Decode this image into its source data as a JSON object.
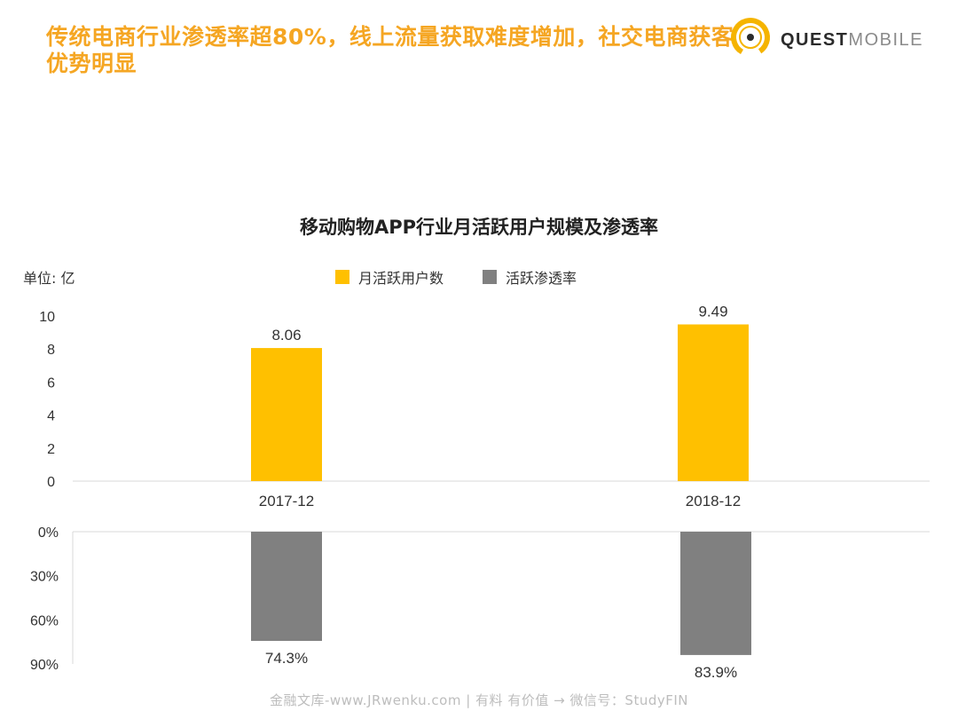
{
  "headline": "传统电商行业渗透率超80%，线上流量获取难度增加，社交电商获客优势明显",
  "brand": {
    "bold": "QUEST",
    "light": "MOBILE"
  },
  "footer": "金融文库-www.JRwenku.com | 有料 有价值 → 微信号：StudyFIN",
  "colors": {
    "accent": "#f5a623",
    "bar_primary": "#ffc000",
    "bar_secondary": "#808080"
  },
  "chart_data": {
    "type": "bar",
    "title": "移动购物APP行业月活跃用户规模及渗透率",
    "unit_label": "单位: 亿",
    "legend_position": "top-center",
    "categories": [
      "2017-12",
      "2018-12"
    ],
    "series": [
      {
        "name": "月活跃用户数",
        "values": [
          8.06,
          9.49
        ],
        "value_labels": [
          "8.06",
          "9.49"
        ],
        "color": "#ffc000",
        "axis": "top",
        "ylim": [
          0,
          10
        ],
        "ticks": [
          "0",
          "2",
          "4",
          "6",
          "8",
          "10"
        ]
      },
      {
        "name": "活跃渗透率",
        "values": [
          74.3,
          83.9
        ],
        "value_labels": [
          "74.3%",
          "83.9%"
        ],
        "color": "#808080",
        "axis": "bottom-inverted",
        "ylim": [
          0,
          90
        ],
        "ticks": [
          "0%",
          "30%",
          "60%",
          "90%"
        ]
      }
    ],
    "grid": false
  }
}
